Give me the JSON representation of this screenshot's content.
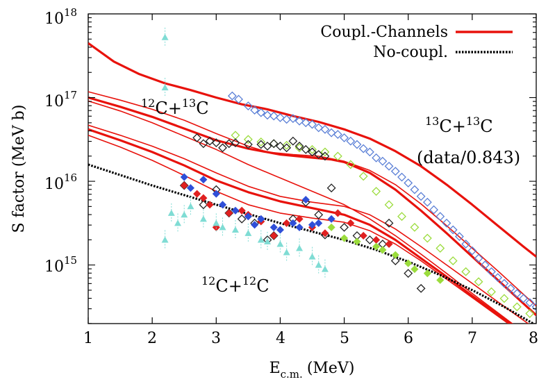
{
  "chart_data": {
    "type": "line",
    "xlabel": "E",
    "xlabel_sub": "c.m.",
    "xlabel_unit": "(MeV)",
    "ylabel": "S factor (MeV b)",
    "xlim": [
      1,
      8
    ],
    "ylim_log10": [
      14.3,
      18
    ],
    "y_scale": "log",
    "grid": false,
    "x_ticks": [
      {
        "value": 1,
        "label": "1"
      },
      {
        "value": 2,
        "label": "2"
      },
      {
        "value": 3,
        "label": "3"
      },
      {
        "value": 4,
        "label": "4"
      },
      {
        "value": 5,
        "label": "5"
      },
      {
        "value": 6,
        "label": "6"
      },
      {
        "value": 7,
        "label": "7"
      },
      {
        "value": 8,
        "label": "8"
      }
    ],
    "y_ticks": [
      {
        "exp": 15,
        "base": "10",
        "sup": "15"
      },
      {
        "exp": 16,
        "base": "10",
        "sup": "16"
      },
      {
        "exp": 17,
        "base": "10",
        "sup": "17"
      },
      {
        "exp": 18,
        "base": "10",
        "sup": "18"
      }
    ],
    "legend": {
      "placement": "top-right",
      "items": [
        {
          "label": "Coupl.-Channels",
          "style": "solid",
          "color": "#e8120c"
        },
        {
          "label": "No-coupl.",
          "style": "dotted",
          "color": "#000000"
        }
      ]
    },
    "annotations": {
      "c12c13": {
        "m1": "12",
        "s1": "C+",
        "m2": "13",
        "s2": "C"
      },
      "c13c13": {
        "m1": "13",
        "s1": "C+",
        "m2": "13",
        "s2": "C"
      },
      "c13c13_note": "(data/0.843)",
      "c12c12": {
        "m1": "12",
        "s1": "C+",
        "m2": "12",
        "s2": "C"
      }
    },
    "colors": {
      "coupled": "#e8120c",
      "no_coupling": "#000000",
      "c13c13_data": "#5a7fd6",
      "c12c13_green": "#9bdc3c",
      "black_diamonds": "#222222",
      "c12c12_red": "#e02020",
      "c12c12_blue": "#2f4fd8",
      "c12c12_cyan": "#7fdcd4"
    },
    "series": [
      {
        "type": "line",
        "style": "solid",
        "width": 3.2,
        "x": [
          1.0,
          1.4,
          1.8,
          2.2,
          2.6,
          3.0,
          3.4,
          3.8,
          4.2,
          4.6,
          5.0,
          5.4,
          5.8,
          6.2,
          6.6,
          7.0,
          7.4,
          7.8,
          8.0
        ],
        "log10_y": [
          17.65,
          17.43,
          17.28,
          17.17,
          17.09,
          17.0,
          16.92,
          16.86,
          16.78,
          16.71,
          16.62,
          16.51,
          16.36,
          16.18,
          15.96,
          15.72,
          15.47,
          15.22,
          15.1
        ]
      },
      {
        "type": "line",
        "style": "solid",
        "width": 1.6,
        "x": [
          1.0,
          1.5,
          2.0,
          2.5,
          3.0,
          3.5,
          3.8,
          4.2,
          4.6,
          5.0,
          5.4,
          5.8,
          6.2,
          6.6,
          7.0,
          7.4,
          7.8,
          8.0
        ],
        "log10_y": [
          17.07,
          16.97,
          16.86,
          16.73,
          16.57,
          16.42,
          16.35,
          16.32,
          16.3,
          16.24,
          16.13,
          15.96,
          15.73,
          15.47,
          15.2,
          14.93,
          14.65,
          14.51
        ]
      },
      {
        "type": "line",
        "style": "solid",
        "width": 3.2,
        "x": [
          1.0,
          1.5,
          2.0,
          2.5,
          3.0,
          3.5,
          4.0,
          4.4,
          4.8,
          5.0,
          5.4,
          5.8,
          6.2,
          6.6,
          7.0,
          7.4,
          7.8,
          8.0
        ],
        "log10_y": [
          17.0,
          16.89,
          16.77,
          16.63,
          16.49,
          16.39,
          16.32,
          16.29,
          16.26,
          16.23,
          16.1,
          15.9,
          15.65,
          15.38,
          15.1,
          14.82,
          14.54,
          14.4
        ]
      },
      {
        "type": "line",
        "style": "solid",
        "width": 1.6,
        "x": [
          1.0,
          1.5,
          2.0,
          2.5,
          3.0,
          3.5,
          4.0,
          4.5,
          5.0,
          5.4,
          5.8,
          6.2,
          6.6,
          7.0,
          7.4,
          7.8,
          8.0
        ],
        "log10_y": [
          16.96,
          16.84,
          16.7,
          16.54,
          16.38,
          16.2,
          16.04,
          15.88,
          15.72,
          15.55,
          15.35,
          15.13,
          14.9,
          14.66,
          14.43,
          14.2,
          14.09
        ]
      },
      {
        "type": "line",
        "style": "solid",
        "width": 1.6,
        "x": [
          1.0,
          1.5,
          2.0,
          2.5,
          3.0,
          3.5,
          4.0,
          4.5,
          5.0,
          5.4,
          5.8,
          6.2,
          6.6,
          7.0,
          7.4,
          7.8,
          8.0
        ],
        "log10_y": [
          16.67,
          16.55,
          16.42,
          16.27,
          16.1,
          15.94,
          15.82,
          15.75,
          15.7,
          15.6,
          15.43,
          15.22,
          15.0,
          14.78,
          14.56,
          14.34,
          14.23
        ]
      },
      {
        "type": "line",
        "style": "solid",
        "width": 3.2,
        "x": [
          1.0,
          1.5,
          2.0,
          2.5,
          3.0,
          3.5,
          4.0,
          4.5,
          5.0,
          5.4,
          5.8,
          6.2,
          6.6,
          7.0,
          7.4,
          7.8,
          8.0
        ],
        "log10_y": [
          16.62,
          16.49,
          16.35,
          16.19,
          16.01,
          15.87,
          15.76,
          15.68,
          15.6,
          15.48,
          15.3,
          15.08,
          14.86,
          14.63,
          14.41,
          14.19,
          14.08
        ]
      },
      {
        "type": "line",
        "style": "solid",
        "width": 1.6,
        "x": [
          1.0,
          1.5,
          2.0,
          2.5,
          3.0,
          3.5,
          4.0,
          4.5,
          5.0,
          5.4,
          5.8,
          6.2,
          6.6,
          7.0,
          7.4,
          7.8,
          8.0
        ],
        "log10_y": [
          16.55,
          16.41,
          16.25,
          16.07,
          15.88,
          15.72,
          15.62,
          15.56,
          15.51,
          15.41,
          15.25,
          15.05,
          14.83,
          14.61,
          14.39,
          14.17,
          14.06
        ]
      },
      {
        "type": "line",
        "style": "dotted",
        "width": 3.2,
        "x": [
          1.0,
          2.0,
          3.0,
          4.0,
          5.0,
          5.5,
          6.0,
          6.5,
          7.0,
          7.5,
          8.0
        ],
        "log10_y": [
          16.2,
          15.95,
          15.72,
          15.5,
          15.3,
          15.18,
          15.04,
          14.88,
          14.7,
          14.5,
          14.28
        ]
      },
      {
        "type": "scatter",
        "marker": "diamond-open",
        "x": [
          3.25,
          3.35,
          3.5,
          3.6,
          3.7,
          3.8,
          3.9,
          4.0,
          4.1,
          4.2,
          4.3,
          4.4,
          4.5,
          4.6,
          4.7,
          4.8,
          4.9,
          5.0,
          5.1,
          5.2,
          5.3,
          5.4,
          5.5,
          5.6,
          5.7,
          5.8,
          5.9,
          6.0,
          6.1,
          6.2,
          6.3,
          6.4,
          6.5,
          6.6,
          6.7,
          6.8,
          6.9,
          7.0,
          7.1,
          7.2,
          7.3,
          7.4,
          7.5,
          7.6,
          7.7,
          7.8,
          7.9,
          8.0
        ],
        "log10_y": [
          17.02,
          16.98,
          16.9,
          16.85,
          16.82,
          16.79,
          16.78,
          16.76,
          16.74,
          16.75,
          16.72,
          16.7,
          16.68,
          16.64,
          16.62,
          16.58,
          16.56,
          16.52,
          16.48,
          16.44,
          16.39,
          16.35,
          16.28,
          16.24,
          16.18,
          16.12,
          16.05,
          15.98,
          15.9,
          15.82,
          15.75,
          15.66,
          15.58,
          15.5,
          15.42,
          15.34,
          15.25,
          15.17,
          15.08,
          15.0,
          14.92,
          14.85,
          14.78,
          14.72,
          14.66,
          14.6,
          14.55,
          14.5
        ]
      },
      {
        "type": "scatter",
        "marker": "diamond-open",
        "x": [
          3.3,
          3.5,
          3.7,
          3.9,
          4.1,
          4.3,
          4.5,
          4.7,
          4.9,
          5.1,
          5.3,
          5.5,
          5.7,
          5.9,
          6.1,
          6.3,
          6.5,
          6.7,
          6.9,
          7.1,
          7.3,
          7.5,
          7.7,
          7.9
        ],
        "log10_y": [
          16.55,
          16.5,
          16.47,
          16.45,
          16.43,
          16.4,
          16.38,
          16.35,
          16.3,
          16.2,
          16.06,
          15.88,
          15.72,
          15.58,
          15.45,
          15.32,
          15.2,
          15.05,
          14.92,
          14.8,
          14.68,
          14.6,
          14.5,
          14.42
        ]
      },
      {
        "type": "scatter",
        "marker": "diamond-open",
        "x": [
          2.7,
          2.8,
          2.9,
          3.0,
          3.1,
          3.2,
          3.3,
          3.5,
          3.7,
          3.8,
          3.9,
          4.0,
          4.1,
          4.2,
          4.3,
          4.4,
          4.5,
          4.6,
          4.7,
          2.5,
          2.8,
          3.0,
          3.2,
          3.4,
          3.6,
          3.8,
          3.9,
          4.2,
          4.4,
          4.6,
          4.7,
          4.8,
          5.0,
          5.2,
          5.4,
          5.6,
          5.7,
          5.8,
          6.0,
          6.2
        ],
        "log10_y": [
          16.52,
          16.45,
          16.48,
          16.46,
          16.4,
          16.45,
          16.46,
          16.44,
          16.44,
          16.42,
          16.45,
          16.42,
          16.4,
          16.48,
          16.42,
          16.38,
          16.35,
          16.32,
          16.3,
          15.95,
          15.72,
          15.9,
          15.62,
          15.55,
          15.5,
          15.3,
          15.35,
          15.55,
          15.75,
          15.6,
          15.36,
          15.92,
          15.45,
          15.35,
          15.3,
          15.25,
          15.5,
          15.05,
          14.9,
          14.72
        ]
      },
      {
        "type": "scatter",
        "marker": "diamond-filled",
        "palette": "c12c12_red",
        "x": [
          2.5,
          2.7,
          2.8,
          2.9,
          3.0,
          3.2,
          3.4,
          3.5,
          3.7,
          3.9,
          4.1,
          4.3,
          4.5,
          4.7,
          4.9,
          5.1,
          5.3,
          5.5,
          5.7
        ],
        "log10_y": [
          15.95,
          15.85,
          15.8,
          15.72,
          15.45,
          15.62,
          15.65,
          15.6,
          15.52,
          15.35,
          15.5,
          15.55,
          15.45,
          15.38,
          15.62,
          15.5,
          15.35,
          15.3,
          15.25
        ]
      },
      {
        "type": "scatter",
        "marker": "diamond-filled",
        "palette": "c12c12_blue",
        "x": [
          2.5,
          2.6,
          2.8,
          3.0,
          3.1,
          3.3,
          3.5,
          3.6,
          3.7,
          3.9,
          4.0,
          4.2,
          4.3,
          4.4,
          4.5,
          4.6,
          4.8
        ],
        "log10_y": [
          16.05,
          15.92,
          16.02,
          15.85,
          15.72,
          15.65,
          15.58,
          15.48,
          15.55,
          15.45,
          15.42,
          15.5,
          15.45,
          15.78,
          15.48,
          15.5,
          15.55
        ]
      },
      {
        "type": "scatter",
        "marker": "diamond-filled",
        "palette": "c12c13_green",
        "x": [
          4.8,
          5.0,
          5.2,
          5.5,
          5.6,
          5.8,
          6.0,
          6.1,
          6.3,
          6.5
        ],
        "log10_y": [
          15.45,
          15.32,
          15.28,
          15.22,
          15.18,
          15.12,
          15.02,
          14.95,
          14.9,
          14.82
        ]
      },
      {
        "type": "scatter",
        "marker": "triangle-filled",
        "palette": "c12c12_cyan",
        "x": [
          2.2,
          2.2,
          2.2,
          2.3,
          2.4,
          2.5,
          2.6,
          2.8,
          3.0,
          3.1,
          3.3,
          3.5,
          3.7,
          3.8,
          4.0,
          4.1,
          4.3,
          4.5,
          4.6,
          4.7
        ],
        "log10_y": [
          17.72,
          17.12,
          15.3,
          15.62,
          15.5,
          15.6,
          15.7,
          15.55,
          15.5,
          15.45,
          15.42,
          15.38,
          15.3,
          15.28,
          15.25,
          15.15,
          15.2,
          15.1,
          15.0,
          14.95
        ]
      }
    ]
  }
}
